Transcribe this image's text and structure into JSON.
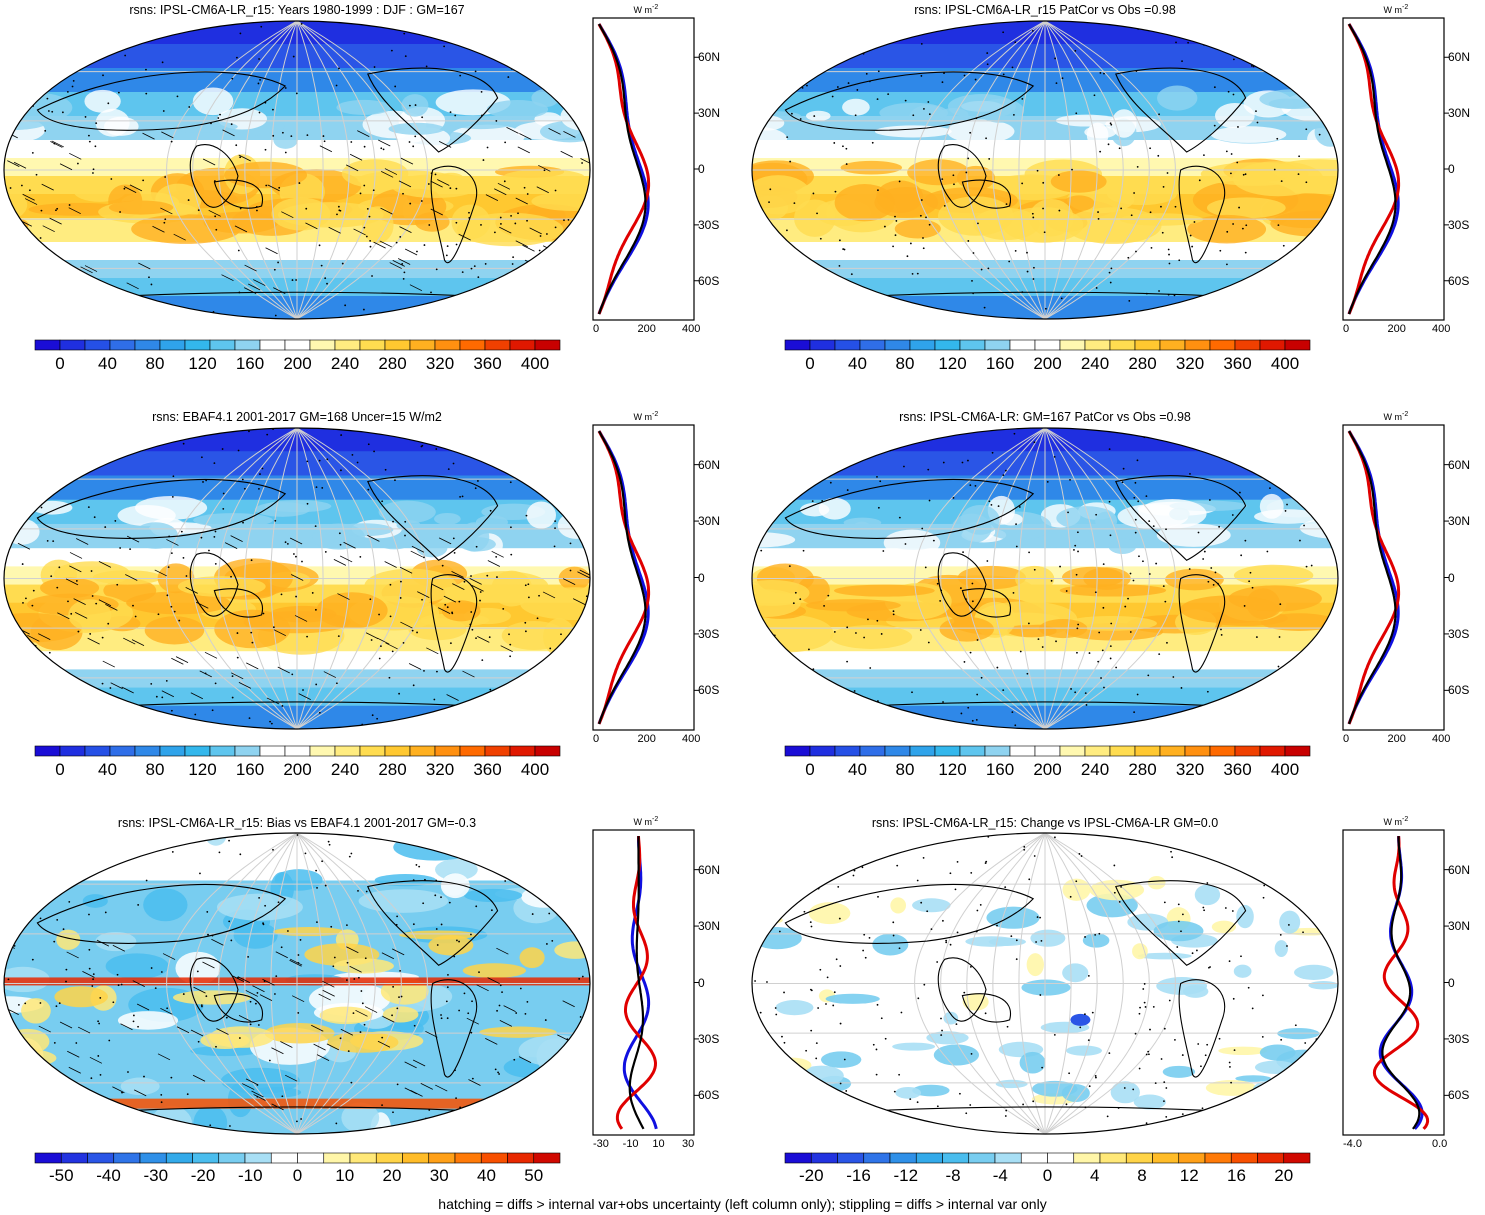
{
  "panels": [
    {
      "id": "p1",
      "title": "rsns: IPSL-CM6A-LR_r15: Years 1980-1999 : DJF : GM=167",
      "kind": "abs",
      "colorbar_labels": [
        "0",
        "40",
        "80",
        "120",
        "160",
        "200",
        "240",
        "280",
        "320",
        "360",
        "400"
      ],
      "profile_ticks": [
        "0",
        "200",
        "400"
      ]
    },
    {
      "id": "p2",
      "title": "rsns: IPSL-CM6A-LR_r15 PatCor vs Obs =0.98",
      "kind": "abs",
      "colorbar_labels": [
        "0",
        "40",
        "80",
        "120",
        "160",
        "200",
        "240",
        "280",
        "320",
        "360",
        "400"
      ],
      "profile_ticks": [
        "0",
        "200",
        "400"
      ]
    },
    {
      "id": "p3",
      "title": "rsns: EBAF4.1 2001-2017 GM=168 Uncer=15 W/m2",
      "kind": "abs",
      "colorbar_labels": [
        "0",
        "40",
        "80",
        "120",
        "160",
        "200",
        "240",
        "280",
        "320",
        "360",
        "400"
      ],
      "profile_ticks": [
        "0",
        "200",
        "400"
      ]
    },
    {
      "id": "p4",
      "title": "rsns: IPSL-CM6A-LR: GM=167 PatCor vs Obs =0.98",
      "kind": "abs",
      "colorbar_labels": [
        "0",
        "40",
        "80",
        "120",
        "160",
        "200",
        "240",
        "280",
        "320",
        "360",
        "400"
      ],
      "profile_ticks": [
        "0",
        "200",
        "400"
      ]
    },
    {
      "id": "p5",
      "title": "rsns: IPSL-CM6A-LR_r15: Bias vs EBAF4.1 2001-2017 GM=-0.3",
      "kind": "bias",
      "colorbar_labels": [
        "-50",
        "-40",
        "-30",
        "-20",
        "-10",
        "0",
        "10",
        "20",
        "30",
        "40",
        "50"
      ],
      "profile_ticks": [
        "-30",
        "-10",
        "10",
        "30"
      ]
    },
    {
      "id": "p6",
      "title": "rsns: IPSL-CM6A-LR_r15: Change vs IPSL-CM6A-LR GM=0.0",
      "kind": "change",
      "colorbar_labels": [
        "-20",
        "-16",
        "-12",
        "-8",
        "-4",
        "0",
        "4",
        "8",
        "12",
        "16",
        "20"
      ],
      "profile_ticks": [
        "-4.0",
        "0.0"
      ]
    }
  ],
  "lat_labels": [
    "60N",
    "30N",
    "0",
    "30S",
    "60S"
  ],
  "profile_unit": "W m",
  "profile_unit_sup": "-2",
  "footer": "hatching = diffs > internal var+obs uncertainty (left column only); stippling = diffs > internal var only",
  "colors": {
    "abs_scale": [
      "#1a0dd6",
      "#1f2fe0",
      "#2550e6",
      "#2f6ee8",
      "#2f88e8",
      "#2fa3ea",
      "#33b7ec",
      "#5ec5ee",
      "#8fd3f0",
      "#ffffff",
      "#ffffff",
      "#fff8b0",
      "#ffec80",
      "#ffdc50",
      "#ffc830",
      "#ffb020",
      "#ff9010",
      "#ff6a00",
      "#f04000",
      "#e01800",
      "#c80000"
    ],
    "div_scale": [
      "#1a0dd6",
      "#2233e0",
      "#2a55e6",
      "#2f74e8",
      "#2f90e8",
      "#33aaea",
      "#4abdee",
      "#78cdf0",
      "#a8dff5",
      "#ffffff",
      "#ffffff",
      "#fff6a8",
      "#ffe878",
      "#ffd448",
      "#ffbc28",
      "#ffa018",
      "#ff7a08",
      "#f85000",
      "#e82800",
      "#d00800"
    ],
    "model_line": "#000000",
    "obs_line": "#e00000",
    "other_line": "#1010e0"
  }
}
